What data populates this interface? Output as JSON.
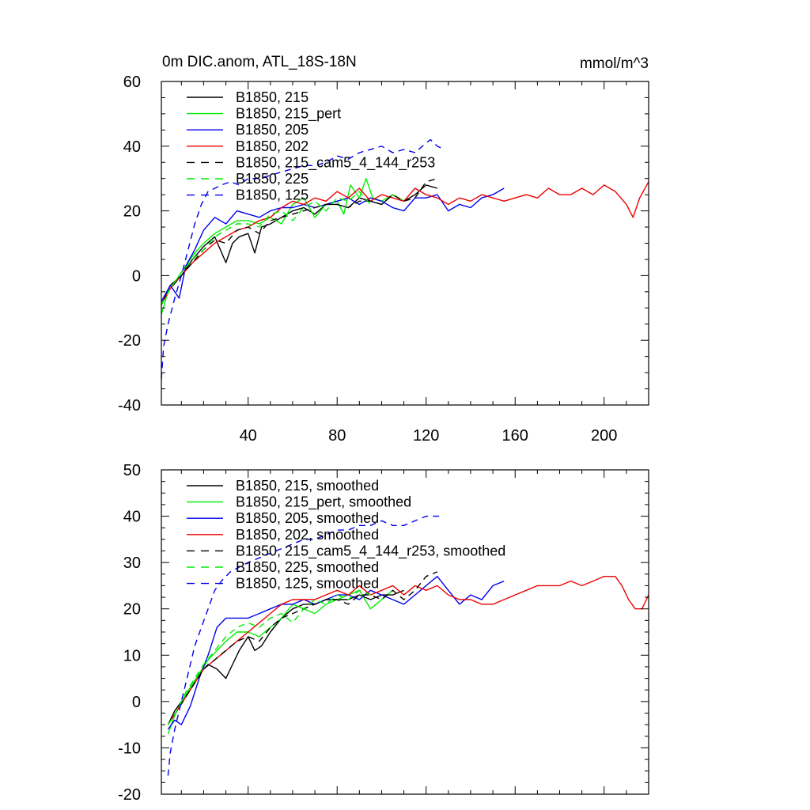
{
  "chart_data": [
    {
      "type": "line",
      "title": "0m DIC.anom, ATL_18S-18N",
      "units_label": "mmol/m^3",
      "xlabel": "",
      "ylabel": "",
      "xlim": [
        1,
        220
      ],
      "ylim": [
        -40,
        60
      ],
      "x_ticks": [
        40,
        80,
        120,
        160,
        200
      ],
      "x_tick_labels": [
        "40",
        "80",
        "120",
        "160",
        "200"
      ],
      "y_ticks": [
        -40,
        -20,
        0,
        20,
        40,
        60
      ],
      "y_tick_labels": [
        "-40",
        "-20",
        "0",
        "20",
        "40",
        "60"
      ],
      "grid": false,
      "legend_position": "top-left",
      "legend": [
        "B1850, 215",
        "B1850, 215_pert",
        "B1850, 205",
        "B1850, 202",
        "B1850, 215_cam5_4_144_r253",
        "B1850, 225",
        "B1850, 125"
      ],
      "series": [
        {
          "name": "B1850, 215",
          "color": "#000000",
          "dash": "solid",
          "x": [
            1,
            5,
            10,
            15,
            20,
            25,
            30,
            33,
            36,
            40,
            43,
            46,
            50,
            55,
            60,
            65,
            70,
            75,
            80,
            85,
            90,
            95,
            100,
            105,
            110,
            115,
            120,
            125
          ],
          "y": [
            -9,
            -3,
            0,
            5,
            9,
            12,
            4,
            10,
            12,
            13,
            7,
            15,
            16,
            18,
            20,
            21,
            19,
            22,
            22,
            21,
            24,
            23,
            22,
            25,
            23,
            25,
            28,
            27
          ]
        },
        {
          "name": "B1850, 215_pert",
          "color": "#00ee00",
          "dash": "solid",
          "x": [
            1,
            4,
            8,
            12,
            16,
            20,
            25,
            30,
            35,
            40,
            45,
            50,
            55,
            60,
            65,
            70,
            75,
            80,
            83,
            86,
            90,
            93,
            96,
            100,
            105,
            110
          ],
          "y": [
            -12,
            -5,
            -1,
            3,
            7,
            10,
            13,
            15,
            17,
            17,
            16,
            18,
            16,
            22,
            24,
            18,
            22,
            23,
            19,
            28,
            24,
            30,
            24,
            23,
            25,
            23
          ]
        },
        {
          "name": "B1850, 205",
          "color": "#0000ee",
          "dash": "solid",
          "x": [
            1,
            5,
            9,
            12,
            16,
            20,
            25,
            30,
            35,
            40,
            45,
            50,
            55,
            60,
            65,
            70,
            75,
            80,
            85,
            90,
            95,
            100,
            105,
            110,
            115,
            120,
            125,
            130,
            135,
            140,
            145,
            150,
            155
          ],
          "y": [
            -8,
            -3,
            -7,
            3,
            8,
            14,
            18,
            16,
            20,
            19,
            18,
            20,
            21,
            21,
            22,
            21,
            22,
            23,
            24,
            22,
            24,
            23,
            21,
            20,
            24,
            24,
            25,
            20,
            22,
            21,
            24,
            25,
            27
          ]
        },
        {
          "name": "B1850, 202",
          "color": "#ee0000",
          "dash": "solid",
          "x": [
            1,
            5,
            10,
            15,
            20,
            25,
            30,
            35,
            40,
            45,
            50,
            55,
            60,
            65,
            70,
            75,
            80,
            85,
            90,
            95,
            100,
            105,
            110,
            115,
            120,
            125,
            130,
            135,
            140,
            145,
            150,
            155,
            160,
            165,
            170,
            175,
            180,
            185,
            190,
            195,
            200,
            205,
            210,
            213,
            216,
            220
          ],
          "y": [
            -9,
            -4,
            0,
            4,
            7,
            10,
            12,
            14,
            15,
            17,
            18,
            21,
            23,
            22,
            24,
            23,
            26,
            24,
            27,
            23,
            25,
            24,
            23,
            27,
            25,
            24,
            22,
            24,
            23,
            25,
            24,
            23,
            24,
            25,
            24,
            27,
            25,
            25,
            27,
            25,
            28,
            26,
            22,
            18,
            24,
            29
          ]
        },
        {
          "name": "B1850, 215_cam5_4_144_r253",
          "color": "#000000",
          "dash": "8,6",
          "x": [
            1,
            5,
            10,
            15,
            20,
            25,
            30,
            35,
            40,
            45,
            50,
            55,
            60,
            65,
            70,
            75,
            80,
            85,
            90,
            95,
            100,
            105,
            110,
            115,
            120,
            125
          ],
          "y": [
            -9,
            -4,
            0,
            4,
            8,
            11,
            10,
            14,
            15,
            13,
            17,
            18,
            19,
            20,
            21,
            22,
            22,
            21,
            23,
            23,
            22,
            25,
            23,
            24,
            29,
            30
          ]
        },
        {
          "name": "B1850, 225",
          "color": "#00ee00",
          "dash": "8,6",
          "x": [
            1,
            5,
            10,
            15,
            20,
            25,
            30,
            35,
            40,
            45,
            50,
            55,
            60,
            65,
            70,
            75,
            80,
            85,
            90,
            95
          ],
          "y": [
            -9,
            -4,
            1,
            5,
            8,
            12,
            14,
            16,
            16,
            15,
            19,
            20,
            17,
            21,
            23,
            20,
            24,
            23,
            26,
            22
          ]
        },
        {
          "name": "B1850, 125",
          "color": "#0000ee",
          "dash": "8,6",
          "x": [
            1,
            2,
            4,
            7,
            10,
            13,
            16,
            19,
            22,
            25,
            28,
            32,
            36,
            40,
            45,
            50,
            55,
            60,
            65,
            70,
            75,
            80,
            85,
            90,
            95,
            100,
            105,
            110,
            115,
            120,
            122,
            125,
            128
          ],
          "y": [
            -32,
            -22,
            -15,
            -7,
            0,
            8,
            16,
            22,
            26,
            27,
            28,
            29,
            28,
            30,
            30,
            31,
            32,
            33,
            34,
            34,
            35,
            37,
            36,
            38,
            39,
            40,
            38,
            39,
            38,
            41,
            42,
            40,
            39
          ]
        }
      ]
    },
    {
      "type": "line",
      "title": "",
      "xlabel": "",
      "ylabel": "",
      "xlim": [
        1,
        220
      ],
      "ylim": [
        -20,
        50
      ],
      "x_ticks": [
        40,
        80,
        120,
        160,
        200
      ],
      "y_ticks": [
        -20,
        -10,
        0,
        10,
        20,
        30,
        40,
        50
      ],
      "y_tick_labels": [
        "-20",
        "-10",
        "0",
        "10",
        "20",
        "30",
        "40",
        "50"
      ],
      "grid": false,
      "legend_position": "top-left",
      "legend": [
        "B1850, 215, smoothed",
        "B1850, 215_pert, smoothed",
        "B1850, 205, smoothed",
        "B1850, 202, smoothed",
        "B1850, 215_cam5_4_144_r253, smoothed",
        "B1850, 225, smoothed",
        "B1850, 125, smoothed"
      ],
      "series": [
        {
          "name": "B1850, 215, smoothed",
          "color": "#000000",
          "dash": "solid",
          "x": [
            4,
            7,
            10,
            14,
            18,
            22,
            26,
            30,
            33,
            36,
            40,
            43,
            46,
            50,
            55,
            60,
            65,
            70,
            75,
            80,
            85,
            90,
            95,
            100,
            105,
            110
          ],
          "y": [
            -5,
            -2,
            0,
            3,
            6,
            8,
            7,
            5,
            8,
            11,
            14,
            11,
            12,
            15,
            18,
            20,
            21,
            21,
            22,
            22,
            22,
            23,
            22,
            23,
            23,
            24
          ]
        },
        {
          "name": "B1850, 215_pert, smoothed",
          "color": "#00ee00",
          "dash": "solid",
          "x": [
            4,
            7,
            10,
            14,
            18,
            22,
            26,
            30,
            35,
            40,
            45,
            50,
            55,
            60,
            65,
            70,
            75,
            80,
            85,
            90,
            95,
            100,
            105
          ],
          "y": [
            -7,
            -3,
            0,
            3,
            6,
            9,
            11,
            13,
            15,
            15,
            14,
            16,
            18,
            21,
            20,
            19,
            21,
            22,
            23,
            24,
            20,
            22,
            24
          ]
        },
        {
          "name": "B1850, 205, smoothed",
          "color": "#0000ee",
          "dash": "solid",
          "x": [
            4,
            7,
            10,
            14,
            18,
            22,
            26,
            30,
            35,
            40,
            45,
            50,
            55,
            60,
            65,
            70,
            75,
            80,
            85,
            90,
            95,
            100,
            105,
            110,
            115,
            120,
            125,
            130,
            135,
            140,
            145,
            150,
            155
          ],
          "y": [
            -6,
            -4,
            -5,
            -1,
            5,
            10,
            16,
            18,
            18,
            18,
            19,
            20,
            21,
            21,
            22,
            21,
            22,
            23,
            23,
            22,
            24,
            23,
            22,
            21,
            23,
            25,
            27,
            24,
            21,
            23,
            22,
            25,
            26
          ]
        },
        {
          "name": "B1850, 202, smoothed",
          "color": "#ee0000",
          "dash": "solid",
          "x": [
            4,
            8,
            12,
            16,
            20,
            25,
            30,
            35,
            40,
            45,
            50,
            55,
            60,
            65,
            70,
            75,
            80,
            85,
            90,
            95,
            100,
            105,
            110,
            115,
            120,
            125,
            130,
            135,
            140,
            145,
            150,
            155,
            160,
            165,
            170,
            175,
            180,
            185,
            190,
            195,
            200,
            205,
            208,
            211,
            214,
            217,
            220
          ],
          "y": [
            -5,
            -2,
            1,
            4,
            7,
            9,
            11,
            13,
            15,
            17,
            19,
            21,
            22,
            22,
            22,
            23,
            24,
            23,
            25,
            23,
            24,
            25,
            23,
            25,
            24,
            25,
            23,
            22,
            22,
            21,
            21,
            22,
            23,
            24,
            25,
            25,
            25,
            26,
            25,
            26,
            27,
            27,
            25,
            22,
            20,
            20,
            23
          ]
        },
        {
          "name": "B1850, 215_cam5_4_144_r253, smoothed",
          "color": "#000000",
          "dash": "8,6",
          "x": [
            4,
            8,
            12,
            16,
            20,
            25,
            30,
            35,
            40,
            45,
            50,
            55,
            60,
            65,
            70,
            75,
            80,
            85,
            90,
            95,
            100,
            105,
            110,
            115,
            120,
            125
          ],
          "y": [
            -5,
            -2,
            1,
            4,
            7,
            9,
            11,
            13,
            14,
            13,
            16,
            18,
            19,
            20,
            21,
            22,
            22,
            21,
            23,
            23,
            22,
            24,
            22,
            24,
            27,
            28
          ]
        },
        {
          "name": "B1850, 225, smoothed",
          "color": "#00ee00",
          "dash": "8,6",
          "x": [
            4,
            8,
            12,
            16,
            20,
            25,
            30,
            35,
            40,
            45,
            50,
            55,
            60,
            65,
            70,
            75,
            80,
            85,
            90,
            95
          ],
          "y": [
            -5,
            -2,
            2,
            5,
            8,
            11,
            14,
            16,
            17,
            16,
            18,
            19,
            17,
            20,
            22,
            21,
            23,
            22,
            24,
            23
          ]
        },
        {
          "name": "B1850, 125, smoothed",
          "color": "#0000ee",
          "dash": "8,6",
          "x": [
            4,
            5,
            7,
            10,
            13,
            16,
            19,
            22,
            25,
            28,
            32,
            36,
            40,
            45,
            50,
            55,
            60,
            65,
            70,
            75,
            80,
            85,
            90,
            95,
            100,
            105,
            110,
            115,
            120,
            125,
            128
          ],
          "y": [
            -16,
            -11,
            -6,
            0,
            6,
            12,
            16,
            20,
            24,
            26,
            28,
            29,
            30,
            31,
            32,
            33,
            34,
            35,
            35,
            36,
            37,
            37,
            38,
            38,
            39,
            38,
            38,
            39,
            40,
            40,
            40
          ]
        }
      ]
    }
  ]
}
